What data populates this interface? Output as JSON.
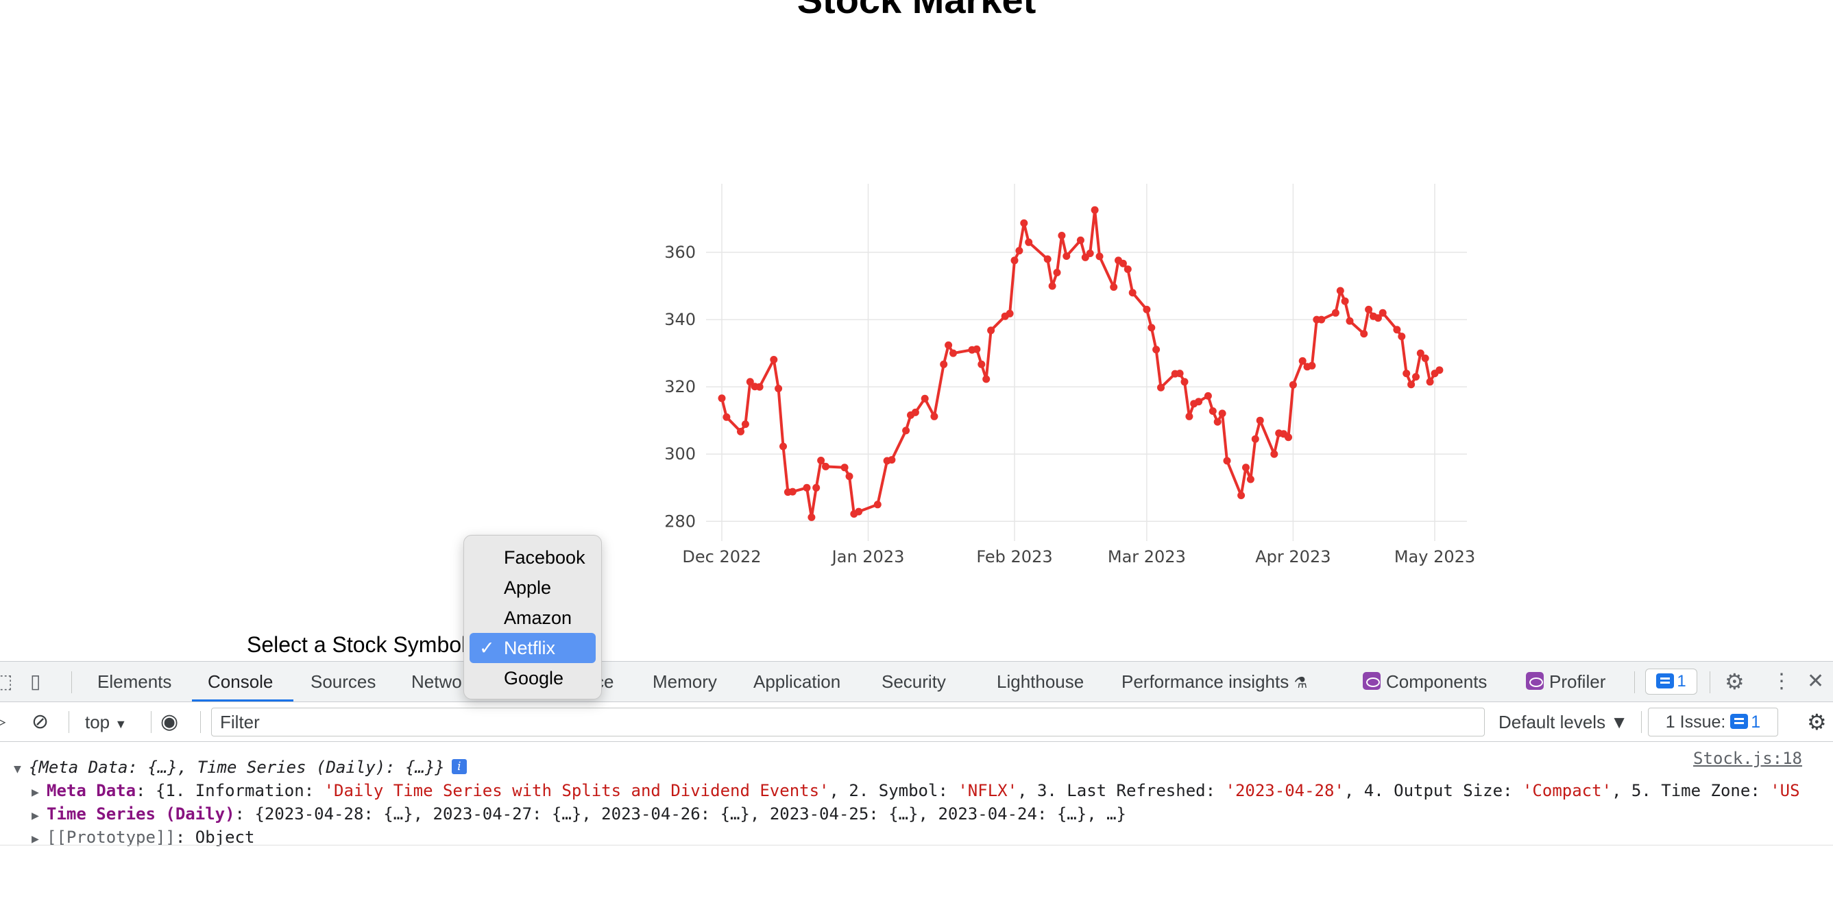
{
  "page": {
    "title": "Stock Market",
    "select_label": "Select a Stock Symbol:"
  },
  "dropdown": {
    "options": [
      "Facebook",
      "Apple",
      "Amazon",
      "Netflix",
      "Google"
    ],
    "selected": "Netflix",
    "check_glyph": "✓"
  },
  "chart_data": {
    "type": "line",
    "series": [
      {
        "color": "#e8312c",
        "points": [
          [
            "2022-12-01",
            316.6
          ],
          [
            "2022-12-02",
            311.0
          ],
          [
            "2022-12-05",
            306.7
          ],
          [
            "2022-12-06",
            308.9
          ],
          [
            "2022-12-07",
            321.5
          ],
          [
            "2022-12-08",
            320.1
          ],
          [
            "2022-12-09",
            320.0
          ],
          [
            "2022-12-12",
            328.1
          ],
          [
            "2022-12-13",
            319.5
          ],
          [
            "2022-12-14",
            302.3
          ],
          [
            "2022-12-15",
            288.7
          ],
          [
            "2022-12-16",
            288.8
          ],
          [
            "2022-12-19",
            290.0
          ],
          [
            "2022-12-20",
            281.2
          ],
          [
            "2022-12-21",
            290.0
          ],
          [
            "2022-12-22",
            298.1
          ],
          [
            "2022-12-23",
            296.3
          ],
          [
            "2022-12-27",
            296.0
          ],
          [
            "2022-12-28",
            293.4
          ],
          [
            "2022-12-29",
            282.2
          ],
          [
            "2022-12-30",
            282.9
          ],
          [
            "2023-01-03",
            285.0
          ],
          [
            "2023-01-05",
            298.0
          ],
          [
            "2023-01-06",
            298.3
          ],
          [
            "2023-01-09",
            307.0
          ],
          [
            "2023-01-10",
            311.6
          ],
          [
            "2023-01-11",
            312.4
          ],
          [
            "2023-01-13",
            316.5
          ],
          [
            "2023-01-15",
            311.2
          ],
          [
            "2023-01-17",
            326.7
          ],
          [
            "2023-01-18",
            332.4
          ],
          [
            "2023-01-19",
            330.0
          ],
          [
            "2023-01-23",
            331.0
          ],
          [
            "2023-01-24",
            331.2
          ],
          [
            "2023-01-25",
            326.7
          ],
          [
            "2023-01-26",
            322.3
          ],
          [
            "2023-01-27",
            336.8
          ],
          [
            "2023-01-30",
            341.0
          ],
          [
            "2023-01-31",
            341.8
          ],
          [
            "2023-02-01",
            357.6
          ],
          [
            "2023-02-02",
            360.5
          ],
          [
            "2023-02-03",
            368.7
          ],
          [
            "2023-02-04",
            363.0
          ],
          [
            "2023-02-08",
            358.0
          ],
          [
            "2023-02-09",
            350.0
          ],
          [
            "2023-02-10",
            354.0
          ],
          [
            "2023-02-11",
            365.0
          ],
          [
            "2023-02-12",
            358.9
          ],
          [
            "2023-02-15",
            363.6
          ],
          [
            "2023-02-16",
            358.5
          ],
          [
            "2023-02-17",
            359.7
          ],
          [
            "2023-02-18",
            372.6
          ],
          [
            "2023-02-19",
            358.8
          ],
          [
            "2023-02-22",
            349.7
          ],
          [
            "2023-02-23",
            357.6
          ],
          [
            "2023-02-24",
            356.7
          ],
          [
            "2023-02-25",
            355.0
          ],
          [
            "2023-02-26",
            348.0
          ],
          [
            "2023-03-01",
            343.0
          ],
          [
            "2023-03-02",
            337.6
          ],
          [
            "2023-03-03",
            331.1
          ],
          [
            "2023-03-04",
            319.8
          ],
          [
            "2023-03-07",
            323.9
          ],
          [
            "2023-03-08",
            324.0
          ],
          [
            "2023-03-09",
            321.5
          ],
          [
            "2023-03-10",
            311.2
          ],
          [
            "2023-03-11",
            315.0
          ],
          [
            "2023-03-12",
            315.6
          ],
          [
            "2023-03-14",
            317.3
          ],
          [
            "2023-03-15",
            312.8
          ],
          [
            "2023-03-16",
            309.6
          ],
          [
            "2023-03-17",
            312.1
          ],
          [
            "2023-03-18",
            298.0
          ],
          [
            "2023-03-21",
            287.7
          ],
          [
            "2023-03-22",
            296.0
          ],
          [
            "2023-03-23",
            292.5
          ],
          [
            "2023-03-24",
            304.5
          ],
          [
            "2023-03-25",
            310.0
          ],
          [
            "2023-03-28",
            300.0
          ],
          [
            "2023-03-29",
            306.2
          ],
          [
            "2023-03-30",
            306.0
          ],
          [
            "2023-03-31",
            305.0
          ],
          [
            "2023-04-01",
            320.6
          ],
          [
            "2023-04-03",
            327.7
          ],
          [
            "2023-04-04",
            326.0
          ],
          [
            "2023-04-05",
            326.3
          ],
          [
            "2023-04-06",
            340.0
          ],
          [
            "2023-04-07",
            340.0
          ],
          [
            "2023-04-10",
            342.0
          ],
          [
            "2023-04-11",
            348.6
          ],
          [
            "2023-04-12",
            345.5
          ],
          [
            "2023-04-13",
            339.6
          ],
          [
            "2023-04-16",
            335.8
          ],
          [
            "2023-04-17",
            343.0
          ],
          [
            "2023-04-18",
            341.0
          ],
          [
            "2023-04-19",
            340.5
          ],
          [
            "2023-04-20",
            342.0
          ],
          [
            "2023-04-23",
            337.0
          ],
          [
            "2023-04-24",
            335.0
          ],
          [
            "2023-04-25",
            324.0
          ],
          [
            "2023-04-26",
            320.7
          ],
          [
            "2023-04-27",
            323.0
          ],
          [
            "2023-04-28",
            330.0
          ],
          [
            "2023-04-29",
            328.5
          ],
          [
            "2023-04-30",
            321.5
          ],
          [
            "2023-05-01",
            324.0
          ],
          [
            "2023-05-02",
            325.0
          ]
        ]
      }
    ],
    "x_ticks": [
      "Dec 2022",
      "Jan 2023",
      "Feb 2023",
      "Mar 2023",
      "Apr 2023",
      "May 2023"
    ],
    "x_tick_dates": [
      "2022-12-01",
      "2023-01-01",
      "2023-02-01",
      "2023-03-01",
      "2023-04-01",
      "2023-05-01"
    ],
    "y_ticks": [
      280,
      300,
      320,
      340,
      360
    ],
    "grid": true
  },
  "devtools": {
    "tabs": [
      "Elements",
      "Console",
      "Sources",
      "Network",
      "Performance",
      "Memory",
      "Application",
      "Security",
      "Lighthouse",
      "Performance insights",
      "Components",
      "Profiler"
    ],
    "visible_tab_text": {
      "network": "Netwo",
      "performance": "ce"
    },
    "active_tab": "Console",
    "flask_glyph": "⚗",
    "issues_count": "1",
    "context": "top",
    "filter_placeholder": "Filter",
    "default_levels": "Default levels ▼",
    "issue_button_label": "1 Issue:",
    "issue_button_count": "1",
    "icons": [
      "inspect-icon",
      "device-toolbar-icon",
      "settings-gear-icon",
      "more-vert-icon",
      "close-icon",
      "sidebar-toggle-icon",
      "clear-console-icon",
      "eye-icon"
    ]
  },
  "console": {
    "source_link": "Stock.js:18",
    "summary": "{Meta Data: {…}, Time Series (Daily): {…}}",
    "info_glyph": "i",
    "meta_key": "Meta Data",
    "meta_value_parts": [
      {
        "t": "{1. Information: ",
        "c": "plain"
      },
      {
        "t": "'Daily Time Series with Splits and Dividend Events'",
        "c": "str"
      },
      {
        "t": ", 2. Symbol: ",
        "c": "plain"
      },
      {
        "t": "'NFLX'",
        "c": "str"
      },
      {
        "t": ", 3. Last Refreshed: ",
        "c": "plain"
      },
      {
        "t": "'2023-04-28'",
        "c": "str"
      },
      {
        "t": ", 4. Output Size: ",
        "c": "plain"
      },
      {
        "t": "'Compact'",
        "c": "str"
      },
      {
        "t": ", 5. Time Zone: ",
        "c": "plain"
      },
      {
        "t": "'US",
        "c": "str"
      }
    ],
    "series_key": "Time Series (Daily)",
    "series_value": "{2023-04-28: {…}, 2023-04-27: {…}, 2023-04-26: {…}, 2023-04-25: {…}, 2023-04-24: {…}, …}",
    "prototype_key": "[[Prototype]]",
    "prototype_value": "Object"
  }
}
